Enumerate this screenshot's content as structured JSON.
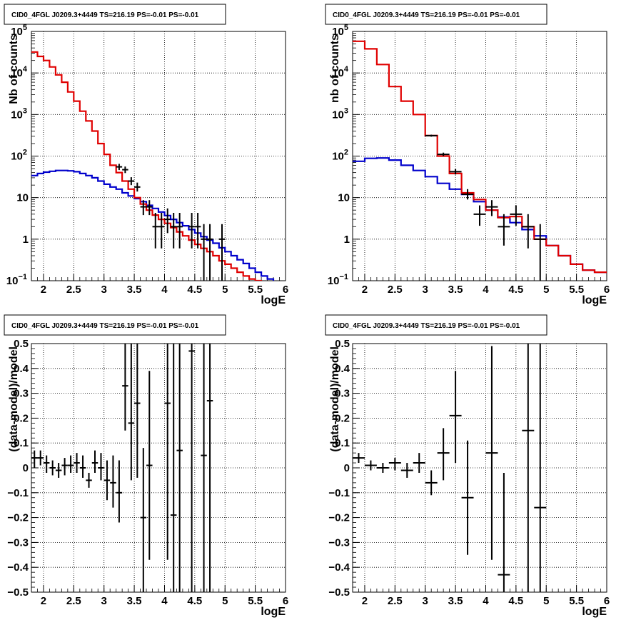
{
  "colors": {
    "data": "#000000",
    "total_model": "#e00000",
    "background_model": "#0000cc",
    "grid": "#000000"
  },
  "chart_data": [
    {
      "type": "line",
      "title": "CID0_4FGL J0209.3+4449 TS=216.19 PS=-0.01 PS=-0.01",
      "xlabel": "logE",
      "ylabel": "Nb of counts",
      "xlim": [
        1.8,
        6.0
      ],
      "ylim": [
        0.1,
        100000
      ],
      "yscale": "log",
      "grid": true,
      "x_ticks": [
        "2",
        "2.5",
        "3",
        "3.5",
        "4",
        "4.5",
        "5",
        "5.5",
        "6"
      ],
      "y_ticks": [
        {
          "value": 100000,
          "base": "10",
          "exp": "5",
          "plain": ""
        },
        {
          "value": 10000,
          "base": "10",
          "exp": "4",
          "plain": ""
        },
        {
          "value": 1000,
          "base": "10",
          "exp": "3",
          "plain": ""
        },
        {
          "value": 100,
          "base": "10",
          "exp": "2",
          "plain": ""
        },
        {
          "value": 10,
          "base": "",
          "exp": "",
          "plain": "10"
        },
        {
          "value": 1,
          "base": "",
          "exp": "",
          "plain": "1"
        },
        {
          "value": 0.1,
          "base": "10",
          "exp": "−1",
          "plain": ""
        }
      ],
      "bin_edges": [
        1.8,
        1.9,
        2.0,
        2.1,
        2.2,
        2.3,
        2.4,
        2.5,
        2.6,
        2.7,
        2.8,
        2.9,
        3.0,
        3.1,
        3.2,
        3.3,
        3.4,
        3.5,
        3.6,
        3.7,
        3.8,
        3.9,
        4.0,
        4.1,
        4.2,
        4.3,
        4.4,
        4.5,
        4.6,
        4.7,
        4.8,
        4.9,
        5.0,
        5.1,
        5.2,
        5.3,
        5.4,
        5.5,
        5.6,
        5.7,
        5.8,
        5.9,
        6.0
      ],
      "series": [
        {
          "role": "total_model",
          "kind": "step",
          "values": [
            32000,
            25000,
            20000,
            14000,
            9000,
            6000,
            3500,
            2100,
            1200,
            700,
            400,
            200,
            110,
            60,
            40,
            25,
            16,
            10,
            7,
            5,
            3.8,
            3.0,
            2.4,
            1.9,
            1.5,
            1.2,
            0.95,
            0.75,
            0.6,
            0.5,
            0.4,
            0.3,
            0.25,
            0.2,
            0.16,
            0.13,
            0.11,
            0.1,
            0.09,
            0.08,
            0.075,
            0.07
          ]
        },
        {
          "role": "background_model",
          "kind": "step",
          "values": [
            34,
            38,
            41,
            43,
            45,
            45,
            44,
            42,
            38,
            34,
            30,
            25,
            21,
            18,
            16,
            13,
            11,
            9.5,
            8,
            6.5,
            5.5,
            4.5,
            3.7,
            3.0,
            2.5,
            2.1,
            1.7,
            1.4,
            1.15,
            0.95,
            0.8,
            0.62,
            0.5,
            0.4,
            0.32,
            0.26,
            0.2,
            0.16,
            0.13,
            0.11,
            0.09,
            0.08
          ]
        },
        {
          "role": "data",
          "kind": "points_with_errors",
          "points": [
            {
              "x": 3.25,
              "y": 55,
              "xerr": 0.05,
              "ylo": 46,
              "yhi": 65
            },
            {
              "x": 3.35,
              "y": 47,
              "xerr": 0.05,
              "ylo": 39,
              "yhi": 56
            },
            {
              "x": 3.45,
              "y": 25,
              "xerr": 0.05,
              "ylo": 20,
              "yhi": 31
            },
            {
              "x": 3.55,
              "y": 18,
              "xerr": 0.05,
              "ylo": 14,
              "yhi": 23
            },
            {
              "x": 3.65,
              "y": 6,
              "xerr": 0.05,
              "ylo": 3.8,
              "yhi": 8.7
            },
            {
              "x": 3.75,
              "y": 6,
              "xerr": 0.05,
              "ylo": 3.8,
              "yhi": 8.7
            },
            {
              "x": 3.85,
              "y": 2,
              "xerr": 0.05,
              "ylo": 0.6,
              "yhi": 4.3
            },
            {
              "x": 3.95,
              "y": 2,
              "xerr": 0.05,
              "ylo": 0.6,
              "yhi": 4.3
            },
            {
              "x": 4.05,
              "y": 3,
              "xerr": 0.05,
              "ylo": 1.4,
              "yhi": 5.5
            },
            {
              "x": 4.15,
              "y": 2,
              "xerr": 0.05,
              "ylo": 0.6,
              "yhi": 4.3
            },
            {
              "x": 4.25,
              "y": 2,
              "xerr": 0.05,
              "ylo": 0.6,
              "yhi": 4.3
            },
            {
              "x": 4.45,
              "y": 2,
              "xerr": 0.05,
              "ylo": 0.6,
              "yhi": 4.3
            },
            {
              "x": 4.55,
              "y": 2,
              "xerr": 0.05,
              "ylo": 0.6,
              "yhi": 4.3
            },
            {
              "x": 4.65,
              "y": 1,
              "xerr": 0.05,
              "ylo": 0.08,
              "yhi": 2.3
            },
            {
              "x": 4.75,
              "y": 1,
              "xerr": 0.05,
              "ylo": 0.08,
              "yhi": 2.3
            },
            {
              "x": 4.95,
              "y": 1,
              "xerr": 0.05,
              "ylo": 0.08,
              "yhi": 2.3
            }
          ]
        }
      ]
    },
    {
      "type": "line",
      "title": "CID0_4FGL J0209.3+4449 TS=216.19 PS=-0.01 PS=-0.01",
      "xlabel": "logE",
      "ylabel": "nb of counts",
      "xlim": [
        1.8,
        6.0
      ],
      "ylim": [
        0.1,
        100000
      ],
      "yscale": "log",
      "grid": true,
      "x_ticks": [
        "2",
        "2.5",
        "3",
        "3.5",
        "4",
        "4.5",
        "5",
        "5.5",
        "6"
      ],
      "y_ticks": [
        {
          "value": 100000,
          "base": "10",
          "exp": "5",
          "plain": ""
        },
        {
          "value": 10000,
          "base": "10",
          "exp": "4",
          "plain": ""
        },
        {
          "value": 1000,
          "base": "10",
          "exp": "3",
          "plain": ""
        },
        {
          "value": 100,
          "base": "10",
          "exp": "2",
          "plain": ""
        },
        {
          "value": 10,
          "base": "",
          "exp": "",
          "plain": "10"
        },
        {
          "value": 1,
          "base": "",
          "exp": "",
          "plain": "1"
        },
        {
          "value": 0.1,
          "base": "10",
          "exp": "−1",
          "plain": ""
        }
      ],
      "bin_edges": [
        1.8,
        2.0,
        2.2,
        2.4,
        2.6,
        2.8,
        3.0,
        3.2,
        3.4,
        3.6,
        3.8,
        4.0,
        4.2,
        4.4,
        4.6,
        4.8,
        5.0,
        5.2,
        5.4,
        5.6,
        5.8,
        6.0
      ],
      "series": [
        {
          "role": "total_model",
          "kind": "step",
          "values": [
            58000,
            38000,
            16000,
            4700,
            2100,
            1000,
            310,
            100,
            38,
            13,
            9,
            5,
            3.3,
            3.5,
            2,
            1,
            0.7,
            0.4,
            0.25,
            0.18,
            0.16
          ]
        },
        {
          "role": "background_model",
          "kind": "step",
          "values": [
            75,
            88,
            90,
            80,
            60,
            45,
            32,
            22,
            16,
            12,
            8,
            5,
            3.4,
            2.5,
            1.7,
            1.2,
            0.7,
            0.4,
            0.25,
            0.18,
            0.16
          ]
        },
        {
          "role": "data",
          "kind": "points_with_errors",
          "points": [
            {
              "x": 3.1,
              "y": 310,
              "xerr": 0.1,
              "ylo": 293,
              "yhi": 327
            },
            {
              "x": 3.3,
              "y": 110,
              "xerr": 0.1,
              "ylo": 100,
              "yhi": 121
            },
            {
              "x": 3.5,
              "y": 42,
              "xerr": 0.1,
              "ylo": 36,
              "yhi": 49
            },
            {
              "x": 3.7,
              "y": 12,
              "xerr": 0.1,
              "ylo": 9,
              "yhi": 16
            },
            {
              "x": 3.9,
              "y": 4,
              "xerr": 0.1,
              "ylo": 2.1,
              "yhi": 6.5
            },
            {
              "x": 4.1,
              "y": 6,
              "xerr": 0.1,
              "ylo": 3.6,
              "yhi": 8.7
            },
            {
              "x": 4.3,
              "y": 2,
              "xerr": 0.1,
              "ylo": 0.7,
              "yhi": 4
            },
            {
              "x": 4.5,
              "y": 4,
              "xerr": 0.1,
              "ylo": 2.1,
              "yhi": 6.5
            },
            {
              "x": 4.7,
              "y": 2,
              "xerr": 0.1,
              "ylo": 0.6,
              "yhi": 4
            },
            {
              "x": 4.9,
              "y": 1,
              "xerr": 0.1,
              "ylo": 0.1,
              "yhi": 2.3
            }
          ]
        }
      ]
    },
    {
      "type": "scatter",
      "title": "CID0_4FGL J0209.3+4449 TS=216.19 PS=-0.01 PS=-0.01",
      "xlabel": "logE",
      "ylabel": "(data-model)/model",
      "xlim": [
        1.8,
        6.0
      ],
      "ylim": [
        -0.5,
        0.5
      ],
      "yscale": "linear",
      "grid": true,
      "x_ticks": [
        "2",
        "2.5",
        "3",
        "3.5",
        "4",
        "4.5",
        "5",
        "5.5",
        "6"
      ],
      "y_ticks": [
        "0.5",
        "0.4",
        "0.3",
        "0.2",
        "0.1",
        "0",
        "−0.1",
        "−0.2",
        "−0.3",
        "−0.4",
        "−0.5"
      ],
      "series": [
        {
          "role": "data",
          "kind": "points_with_errors",
          "points": [
            {
              "x": 1.85,
              "y": 0.04,
              "xerr": 0.05,
              "ylo": 0.0,
              "yhi": 0.07
            },
            {
              "x": 1.95,
              "y": 0.04,
              "xerr": 0.05,
              "ylo": 0.01,
              "yhi": 0.07
            },
            {
              "x": 2.05,
              "y": 0.02,
              "xerr": 0.05,
              "ylo": -0.02,
              "yhi": 0.05
            },
            {
              "x": 2.15,
              "y": 0.0,
              "xerr": 0.05,
              "ylo": -0.03,
              "yhi": 0.03
            },
            {
              "x": 2.25,
              "y": -0.01,
              "xerr": 0.05,
              "ylo": -0.04,
              "yhi": 0.02
            },
            {
              "x": 2.35,
              "y": 0.01,
              "xerr": 0.05,
              "ylo": -0.03,
              "yhi": 0.04
            },
            {
              "x": 2.45,
              "y": 0.01,
              "xerr": 0.05,
              "ylo": -0.02,
              "yhi": 0.05
            },
            {
              "x": 2.55,
              "y": 0.02,
              "xerr": 0.05,
              "ylo": -0.02,
              "yhi": 0.06
            },
            {
              "x": 2.65,
              "y": 0.0,
              "xerr": 0.05,
              "ylo": -0.04,
              "yhi": 0.05
            },
            {
              "x": 2.75,
              "y": -0.05,
              "xerr": 0.05,
              "ylo": -0.08,
              "yhi": -0.02
            },
            {
              "x": 2.85,
              "y": 0.02,
              "xerr": 0.05,
              "ylo": -0.02,
              "yhi": 0.07
            },
            {
              "x": 2.95,
              "y": 0.0,
              "xerr": 0.05,
              "ylo": -0.05,
              "yhi": 0.06
            },
            {
              "x": 3.05,
              "y": -0.05,
              "xerr": 0.05,
              "ylo": -0.13,
              "yhi": 0.03
            },
            {
              "x": 3.15,
              "y": -0.06,
              "xerr": 0.05,
              "ylo": -0.16,
              "yhi": 0.05
            },
            {
              "x": 3.25,
              "y": -0.1,
              "xerr": 0.05,
              "ylo": -0.22,
              "yhi": 0.03
            },
            {
              "x": 3.35,
              "y": 0.33,
              "xerr": 0.05,
              "ylo": 0.15,
              "yhi": 0.5
            },
            {
              "x": 3.45,
              "y": 0.18,
              "xerr": 0.05,
              "ylo": -0.05,
              "yhi": 0.5
            },
            {
              "x": 3.55,
              "y": 0.26,
              "xerr": 0.05,
              "ylo": -0.04,
              "yhi": 0.5
            },
            {
              "x": 3.65,
              "y": -0.2,
              "xerr": 0.05,
              "ylo": -0.5,
              "yhi": 0.08
            },
            {
              "x": 3.75,
              "y": 0.01,
              "xerr": 0.05,
              "ylo": -0.37,
              "yhi": 0.39
            },
            {
              "x": 4.05,
              "y": 0.26,
              "xerr": 0.05,
              "ylo": -0.37,
              "yhi": 0.5
            },
            {
              "x": 4.15,
              "y": -0.19,
              "xerr": 0.05,
              "ylo": -0.5,
              "yhi": 0.5
            },
            {
              "x": 4.25,
              "y": 0.07,
              "xerr": 0.05,
              "ylo": -0.5,
              "yhi": 0.5
            },
            {
              "x": 4.45,
              "y": 0.47,
              "xerr": 0.05,
              "ylo": -0.5,
              "yhi": 0.5
            },
            {
              "x": 4.65,
              "y": 0.05,
              "xerr": 0.05,
              "ylo": -0.5,
              "yhi": 0.5
            },
            {
              "x": 4.75,
              "y": 0.27,
              "xerr": 0.05,
              "ylo": -0.5,
              "yhi": 0.5
            }
          ]
        }
      ]
    },
    {
      "type": "scatter",
      "title": "CID0_4FGL J0209.3+4449 TS=216.19 PS=-0.01 PS=-0.01",
      "xlabel": "logE",
      "ylabel": "(data-model)/model",
      "xlim": [
        1.8,
        6.0
      ],
      "ylim": [
        -0.5,
        0.5
      ],
      "yscale": "linear",
      "grid": true,
      "x_ticks": [
        "2",
        "2.5",
        "3",
        "3.5",
        "4",
        "4.5",
        "5",
        "5.5",
        "6"
      ],
      "y_ticks": [
        "0.5",
        "0.4",
        "0.3",
        "0.2",
        "0.1",
        "0",
        "−0.1",
        "−0.2",
        "−0.3",
        "−0.4",
        "−0.5"
      ],
      "series": [
        {
          "role": "data",
          "kind": "points_with_errors",
          "points": [
            {
              "x": 1.9,
              "y": 0.04,
              "xerr": 0.1,
              "ylo": 0.02,
              "yhi": 0.06
            },
            {
              "x": 2.1,
              "y": 0.01,
              "xerr": 0.1,
              "ylo": -0.01,
              "yhi": 0.03
            },
            {
              "x": 2.3,
              "y": 0.0,
              "xerr": 0.1,
              "ylo": -0.02,
              "yhi": 0.02
            },
            {
              "x": 2.5,
              "y": 0.02,
              "xerr": 0.1,
              "ylo": -0.01,
              "yhi": 0.04
            },
            {
              "x": 2.7,
              "y": -0.01,
              "xerr": 0.1,
              "ylo": -0.04,
              "yhi": 0.02
            },
            {
              "x": 2.9,
              "y": 0.02,
              "xerr": 0.1,
              "ylo": -0.02,
              "yhi": 0.06
            },
            {
              "x": 3.1,
              "y": -0.06,
              "xerr": 0.1,
              "ylo": -0.11,
              "yhi": -0.01
            },
            {
              "x": 3.3,
              "y": 0.06,
              "xerr": 0.1,
              "ylo": -0.05,
              "yhi": 0.16
            },
            {
              "x": 3.5,
              "y": 0.21,
              "xerr": 0.1,
              "ylo": 0.02,
              "yhi": 0.39
            },
            {
              "x": 3.7,
              "y": -0.12,
              "xerr": 0.1,
              "ylo": -0.35,
              "yhi": 0.11
            },
            {
              "x": 4.1,
              "y": 0.06,
              "xerr": 0.1,
              "ylo": -0.37,
              "yhi": 0.49
            },
            {
              "x": 4.3,
              "y": -0.43,
              "xerr": 0.1,
              "ylo": -0.5,
              "yhi": -0.02
            },
            {
              "x": 4.7,
              "y": 0.15,
              "xerr": 0.1,
              "ylo": -0.5,
              "yhi": 0.5
            },
            {
              "x": 4.9,
              "y": -0.16,
              "xerr": 0.1,
              "ylo": -0.5,
              "yhi": 0.5
            }
          ]
        }
      ]
    }
  ]
}
